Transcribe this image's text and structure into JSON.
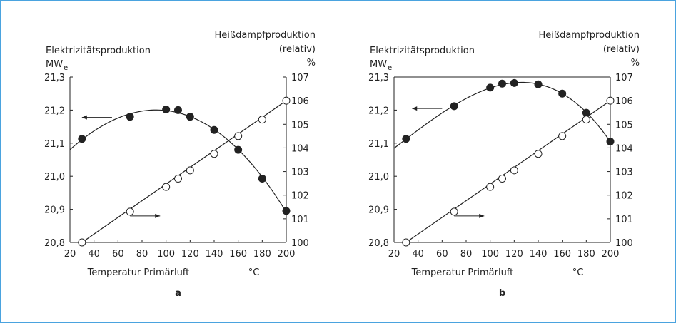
{
  "colors": {
    "frame": "#4aa3df",
    "ink": "#222222"
  },
  "chart_data": [
    {
      "type": "line",
      "panel_label": "a",
      "xlabel": "Temperatur Primärluft",
      "xunit": "°C",
      "xticks": [
        20,
        40,
        60,
        80,
        100,
        120,
        140,
        160,
        180,
        200
      ],
      "xlim": [
        20,
        200
      ],
      "left_axis": {
        "title": "Elektrizitätsproduktion",
        "unit": "MW",
        "unit_sub": "el",
        "ticks": [
          "20,8",
          "20,9",
          "21,0",
          "21,1",
          "21,2",
          "21,3"
        ],
        "ylim": [
          20.8,
          21.3
        ]
      },
      "right_axis": {
        "title_line1": "Heißdampfproduktion",
        "title_line2": "(relativ)",
        "unit": "%",
        "ticks": [
          "100",
          "101",
          "102",
          "103",
          "104",
          "105",
          "106",
          "107"
        ],
        "ylim": [
          100,
          107
        ]
      },
      "series": [
        {
          "axis": "left",
          "marker": "filled-circle",
          "fit": "curve",
          "x": [
            30,
            70,
            100,
            110,
            120,
            140,
            160,
            180,
            200
          ],
          "y": [
            21.113,
            21.18,
            21.202,
            21.2,
            21.18,
            21.14,
            21.08,
            20.993,
            20.895
          ]
        },
        {
          "axis": "right",
          "marker": "open-circle",
          "fit": "straight",
          "x": [
            30,
            70,
            100,
            110,
            120,
            140,
            160,
            180,
            200
          ],
          "y": [
            100.0,
            101.3,
            102.35,
            102.7,
            103.05,
            103.75,
            104.5,
            105.2,
            106.0
          ]
        }
      ],
      "arrows": [
        {
          "points_to": "left",
          "x_from": 55,
          "x_to": 30,
          "y_axis": "left",
          "y": 21.178
        },
        {
          "points_to": "right",
          "x_from": 70,
          "x_to": 95,
          "y_axis": "left",
          "y": 20.88
        }
      ]
    },
    {
      "type": "line",
      "panel_label": "b",
      "xlabel": "Temperatur Primärluft",
      "xunit": "°C",
      "xticks": [
        20,
        40,
        60,
        80,
        100,
        120,
        140,
        160,
        180,
        200
      ],
      "xlim": [
        20,
        200
      ],
      "left_axis": {
        "title": "Elektrizitätsproduktion",
        "unit": "MW",
        "unit_sub": "el",
        "ticks": [
          "20,8",
          "20,9",
          "21,0",
          "21,1",
          "21,2",
          "21,3"
        ],
        "ylim": [
          20.8,
          21.3
        ]
      },
      "right_axis": {
        "title_line1": "Heißdampfproduktion",
        "title_line2": "(relativ)",
        "unit": "%",
        "ticks": [
          "100",
          "101",
          "102",
          "103",
          "104",
          "105",
          "106",
          "107"
        ],
        "ylim": [
          100,
          107
        ]
      },
      "series": [
        {
          "axis": "left",
          "marker": "filled-circle",
          "fit": "curve",
          "x": [
            30,
            70,
            100,
            110,
            120,
            140,
            160,
            180,
            200
          ],
          "y": [
            21.113,
            21.212,
            21.268,
            21.28,
            21.282,
            21.278,
            21.25,
            21.192,
            21.105
          ]
        },
        {
          "axis": "right",
          "marker": "open-circle",
          "fit": "straight",
          "x": [
            30,
            70,
            100,
            110,
            120,
            140,
            160,
            180,
            200
          ],
          "y": [
            100.0,
            101.3,
            102.35,
            102.7,
            103.05,
            103.75,
            104.5,
            105.2,
            106.0
          ]
        }
      ],
      "arrows": [
        {
          "points_to": "left",
          "x_from": 60,
          "x_to": 35,
          "y_axis": "left",
          "y": 21.205
        },
        {
          "points_to": "right",
          "x_from": 70,
          "x_to": 95,
          "y_axis": "left",
          "y": 20.88
        }
      ]
    }
  ]
}
